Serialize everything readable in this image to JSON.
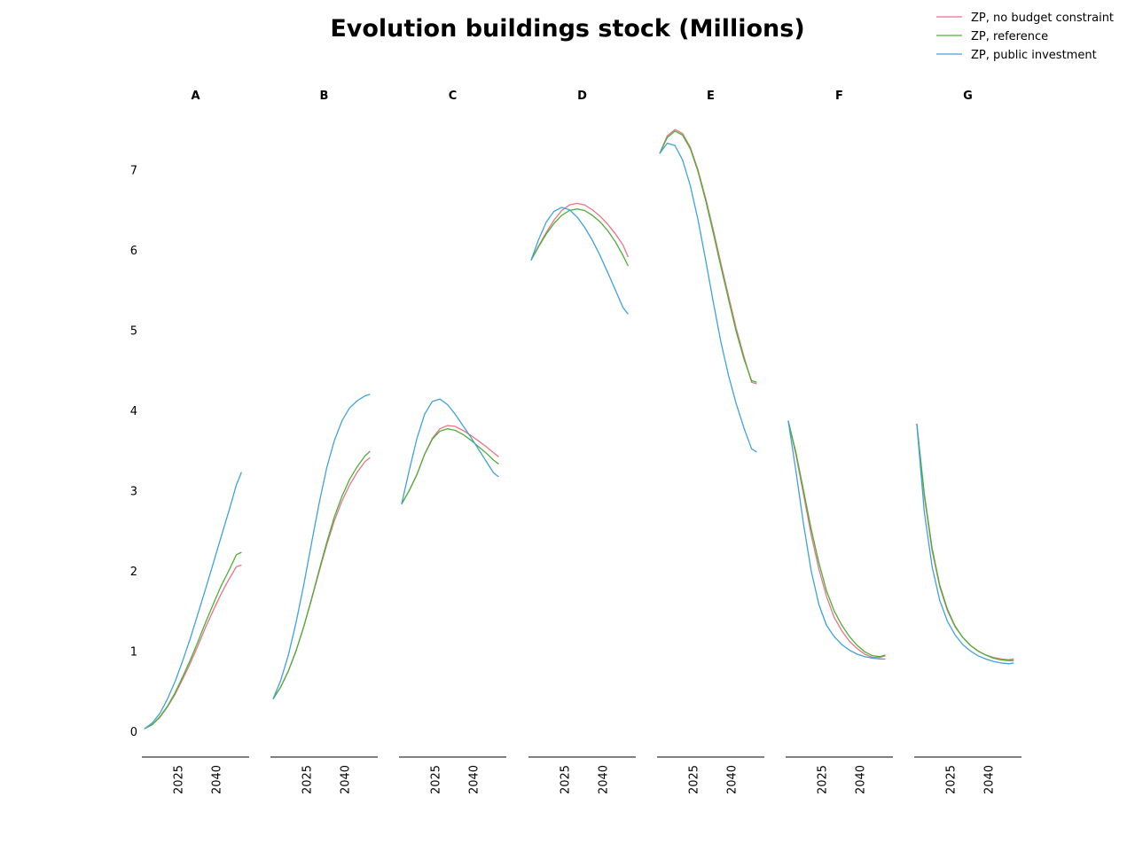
{
  "chart_data": {
    "type": "line",
    "title": "Evolution buildings stock (Millions)",
    "ylim": [
      -0.3,
      7.7
    ],
    "y_ticks": [
      0,
      1,
      2,
      3,
      4,
      5,
      6,
      7
    ],
    "x_ticks": [
      2025,
      2040
    ],
    "xlim": [
      2011,
      2053
    ],
    "legend_position": "top-right",
    "series": [
      {
        "name": "ZP, no budget constraint",
        "color": "#e8728a"
      },
      {
        "name": "ZP, reference",
        "color": "#4caf34"
      },
      {
        "name": "ZP, public investment",
        "color": "#3fa2dc"
      }
    ],
    "x": [
      2012,
      2015,
      2018,
      2021,
      2024,
      2027,
      2030,
      2033,
      2036,
      2039,
      2042,
      2045,
      2048,
      2050
    ],
    "panels": [
      {
        "label": "A",
        "values": [
          [
            0.03,
            0.08,
            0.17,
            0.3,
            0.46,
            0.65,
            0.85,
            1.07,
            1.3,
            1.51,
            1.71,
            1.89,
            2.05,
            2.07
          ],
          [
            0.03,
            0.08,
            0.18,
            0.31,
            0.48,
            0.68,
            0.89,
            1.12,
            1.36,
            1.59,
            1.81,
            2.0,
            2.2,
            2.23
          ],
          [
            0.03,
            0.1,
            0.22,
            0.4,
            0.62,
            0.88,
            1.16,
            1.47,
            1.78,
            2.1,
            2.42,
            2.74,
            3.07,
            3.23
          ]
        ]
      },
      {
        "label": "B",
        "values": [
          [
            0.4,
            0.55,
            0.75,
            1.0,
            1.3,
            1.63,
            1.98,
            2.32,
            2.62,
            2.87,
            3.07,
            3.23,
            3.36,
            3.41
          ],
          [
            0.4,
            0.55,
            0.75,
            1.0,
            1.3,
            1.64,
            2.0,
            2.35,
            2.67,
            2.93,
            3.14,
            3.3,
            3.43,
            3.49
          ],
          [
            0.4,
            0.63,
            0.95,
            1.35,
            1.82,
            2.33,
            2.83,
            3.28,
            3.62,
            3.87,
            4.03,
            4.12,
            4.18,
            4.2
          ]
        ]
      },
      {
        "label": "C",
        "values": [
          [
            2.83,
            3.0,
            3.2,
            3.45,
            3.65,
            3.77,
            3.81,
            3.8,
            3.75,
            3.69,
            3.62,
            3.55,
            3.47,
            3.42
          ],
          [
            2.83,
            3.0,
            3.2,
            3.45,
            3.64,
            3.74,
            3.77,
            3.75,
            3.7,
            3.63,
            3.55,
            3.47,
            3.38,
            3.33
          ],
          [
            2.83,
            3.25,
            3.65,
            3.95,
            4.11,
            4.14,
            4.07,
            3.95,
            3.81,
            3.67,
            3.52,
            3.37,
            3.22,
            3.17
          ]
        ]
      },
      {
        "label": "D",
        "values": [
          [
            5.87,
            6.05,
            6.22,
            6.37,
            6.49,
            6.56,
            6.58,
            6.56,
            6.5,
            6.42,
            6.32,
            6.2,
            6.06,
            5.91
          ],
          [
            5.87,
            6.04,
            6.2,
            6.33,
            6.43,
            6.49,
            6.51,
            6.49,
            6.43,
            6.35,
            6.24,
            6.1,
            5.93,
            5.8
          ],
          [
            5.87,
            6.13,
            6.35,
            6.48,
            6.53,
            6.5,
            6.41,
            6.28,
            6.12,
            5.93,
            5.72,
            5.5,
            5.28,
            5.2
          ]
        ]
      },
      {
        "label": "E",
        "values": [
          [
            7.2,
            7.42,
            7.5,
            7.45,
            7.28,
            7.0,
            6.65,
            6.25,
            5.83,
            5.42,
            5.02,
            4.67,
            4.35,
            4.33
          ],
          [
            7.2,
            7.4,
            7.48,
            7.43,
            7.26,
            6.98,
            6.62,
            6.21,
            5.79,
            5.38,
            4.98,
            4.64,
            4.37,
            4.35
          ],
          [
            7.2,
            7.33,
            7.3,
            7.12,
            6.8,
            6.38,
            5.88,
            5.35,
            4.85,
            4.43,
            4.08,
            3.78,
            3.52,
            3.48
          ]
        ]
      },
      {
        "label": "F",
        "values": [
          [
            3.87,
            3.45,
            2.95,
            2.45,
            2.02,
            1.68,
            1.42,
            1.25,
            1.12,
            1.03,
            0.96,
            0.92,
            0.92,
            0.94
          ],
          [
            3.87,
            3.48,
            3.0,
            2.52,
            2.1,
            1.75,
            1.5,
            1.32,
            1.18,
            1.07,
            0.99,
            0.94,
            0.93,
            0.95
          ],
          [
            3.87,
            3.25,
            2.58,
            2.0,
            1.58,
            1.32,
            1.18,
            1.08,
            1.01,
            0.96,
            0.93,
            0.91,
            0.9,
            0.9
          ]
        ]
      },
      {
        "label": "G",
        "values": [
          [
            3.83,
            2.92,
            2.25,
            1.8,
            1.5,
            1.3,
            1.17,
            1.07,
            1.0,
            0.95,
            0.92,
            0.9,
            0.89,
            0.9
          ],
          [
            3.83,
            2.95,
            2.28,
            1.82,
            1.52,
            1.31,
            1.17,
            1.07,
            1.0,
            0.95,
            0.91,
            0.89,
            0.88,
            0.88
          ],
          [
            3.83,
            2.72,
            2.05,
            1.63,
            1.37,
            1.2,
            1.08,
            1.0,
            0.94,
            0.9,
            0.87,
            0.85,
            0.84,
            0.85
          ]
        ]
      }
    ]
  }
}
